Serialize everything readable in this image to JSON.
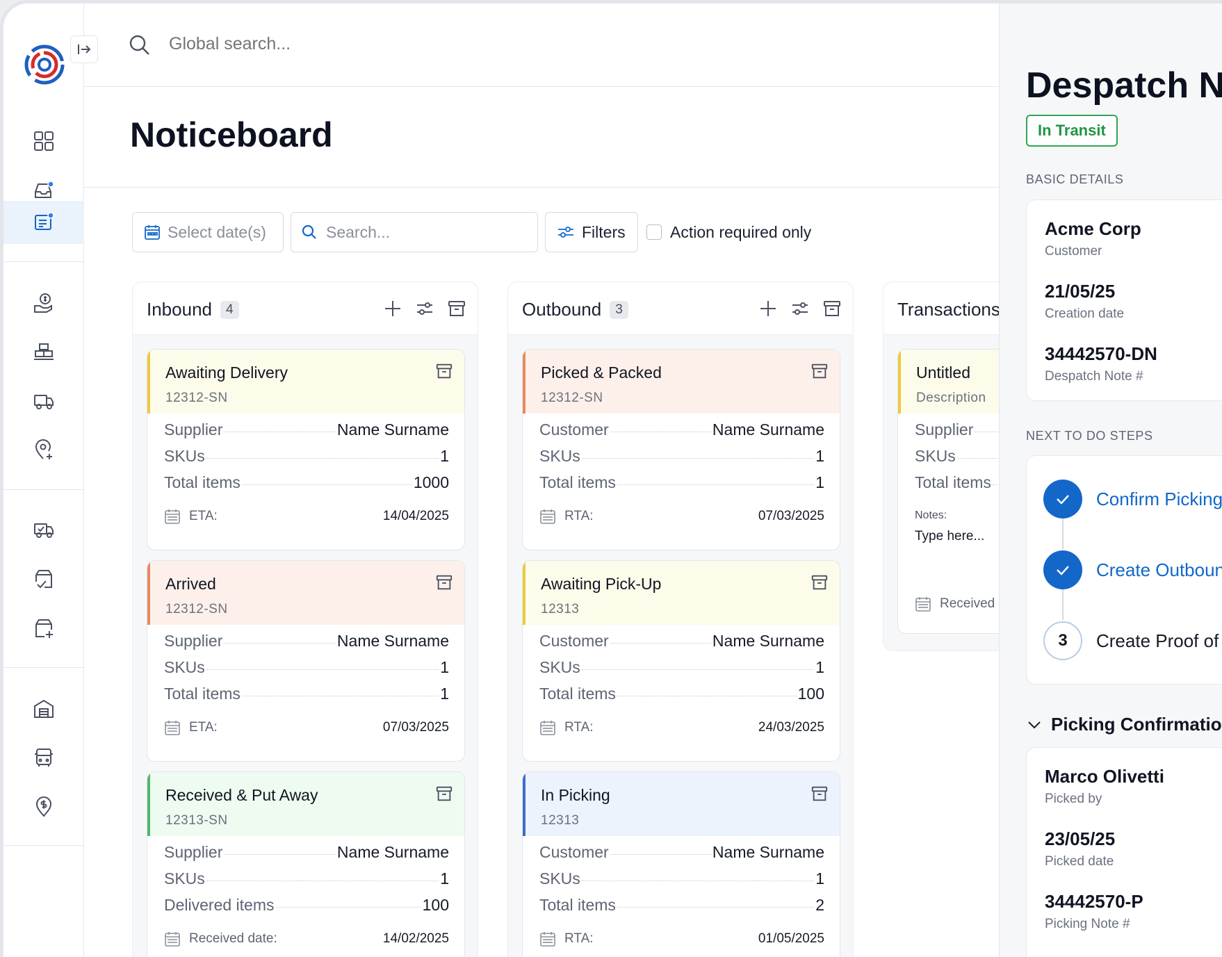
{
  "sidebar": {
    "logo": "logo-icon",
    "collapse": "collapse-icon",
    "icons": [
      "dashboard-icon",
      "inbox-icon",
      "noticeboard-icon",
      "payments-icon",
      "inventory-icon",
      "delivery-truck-icon",
      "add-location-icon",
      "truck-check-icon",
      "package-check-icon",
      "package-add-icon",
      "warehouse-icon",
      "vehicle-icon",
      "location-dollar-icon"
    ]
  },
  "search": {
    "placeholder": "Global search..."
  },
  "page": {
    "title": "Noticeboard"
  },
  "toolbar": {
    "date_label": "Select date(s)",
    "search_placeholder": "Search...",
    "filters_label": "Filters",
    "action_required_label": "Action required only"
  },
  "columns": [
    {
      "title": "Inbound",
      "count": "4",
      "cards": [
        {
          "title": "Awaiting Delivery",
          "sub": "12312-SN",
          "color": "#eec93d",
          "rows": [
            [
              "Supplier",
              "Name Surname"
            ],
            [
              "SKUs",
              "1"
            ],
            [
              "Total items",
              "1000"
            ]
          ],
          "date_label": "ETA:",
          "date": "14/04/2025"
        },
        {
          "title": "Arrived",
          "sub": "12312-SN",
          "color": "#e68a5c",
          "rows": [
            [
              "Supplier",
              "Name Surname"
            ],
            [
              "SKUs",
              "1"
            ],
            [
              "Total items",
              "1"
            ]
          ],
          "date_label": "ETA:",
          "date": "07/03/2025"
        },
        {
          "title": "Received & Put Away",
          "sub": "12313-SN",
          "color": "#4fb86c",
          "rows": [
            [
              "Supplier",
              "Name Surname"
            ],
            [
              "SKUs",
              "1"
            ],
            [
              "Delivered items",
              "100"
            ]
          ],
          "date_label": "Received date:",
          "date": "14/02/2025"
        }
      ]
    },
    {
      "title": "Outbound",
      "count": "3",
      "cards": [
        {
          "title": "Picked & Packed",
          "sub": "12312-SN",
          "color": "#e68a5c",
          "rows": [
            [
              "Customer",
              "Name Surname"
            ],
            [
              "SKUs",
              "1"
            ],
            [
              "Total items",
              "1"
            ]
          ],
          "date_label": "RTA:",
          "date": "07/03/2025"
        },
        {
          "title": "Awaiting Pick-Up",
          "sub": "12313",
          "color": "#eec93d",
          "rows": [
            [
              "Customer",
              "Name Surname"
            ],
            [
              "SKUs",
              "1"
            ],
            [
              "Total items",
              "100"
            ]
          ],
          "date_label": "RTA:",
          "date": "24/03/2025"
        },
        {
          "title": "In Picking",
          "sub": "12313",
          "color": "#3c6fc9",
          "rows": [
            [
              "Customer",
              "Name Surname"
            ],
            [
              "SKUs",
              "1"
            ],
            [
              "Total items",
              "2"
            ]
          ],
          "date_label": "RTA:",
          "date": "01/05/2025"
        }
      ]
    },
    {
      "title": "Transactions",
      "card": {
        "title": "Untitled",
        "sub": "Description",
        "rows": [
          "Supplier",
          "SKUs",
          "Total items"
        ],
        "notes_label": "Notes:",
        "notes_placeholder": "Type here...",
        "date_label": "Received"
      }
    }
  ],
  "panel": {
    "title": "Despatch Note",
    "status": "In Transit",
    "status_color": "#2fa553",
    "basic_details_label": "BASIC DETAILS",
    "basic": [
      {
        "value": "Acme Corp",
        "label": "Customer"
      },
      {
        "value": "21/05/25",
        "label": "Creation date"
      },
      {
        "value": "34442570-DN",
        "label": "Despatch Note #"
      }
    ],
    "steps_label": "NEXT TO DO STEPS",
    "steps": [
      {
        "icon": "check-icon",
        "label": "Confirm Picking",
        "state": "done"
      },
      {
        "icon": "check-icon",
        "label": "Create Outbound",
        "state": "done"
      },
      {
        "number": "3",
        "label": "Create Proof of",
        "state": "todo"
      }
    ],
    "picking_label": "Picking Confirmation",
    "picking": [
      {
        "value": "Marco Olivetti",
        "label": "Picked by"
      },
      {
        "value": "23/05/25",
        "label": "Picked date"
      },
      {
        "value": "34442570-P",
        "label": "Picking Note #"
      }
    ]
  }
}
